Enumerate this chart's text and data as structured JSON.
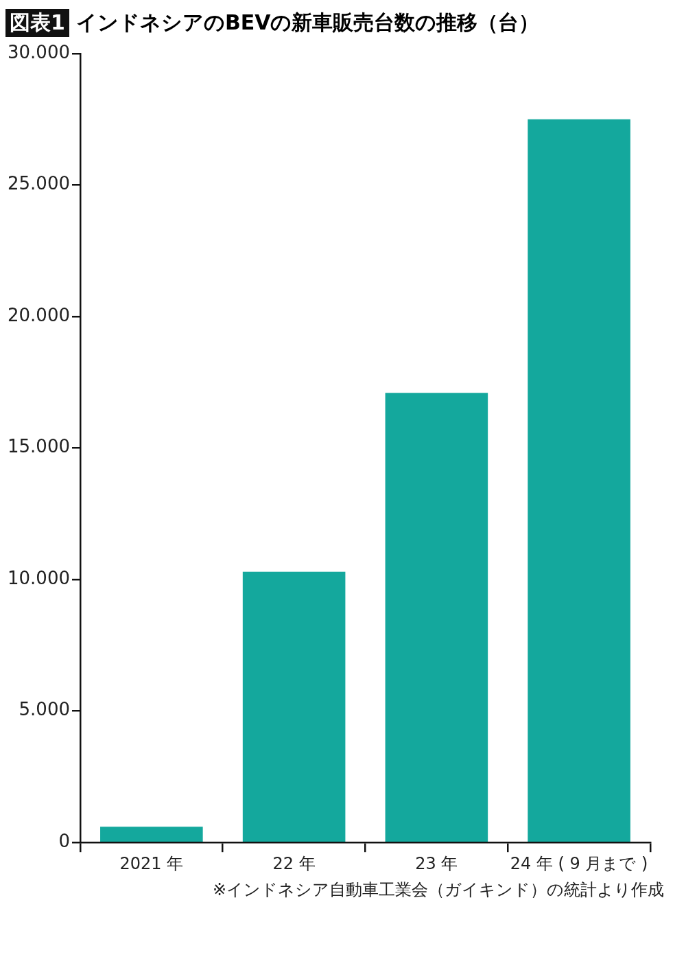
{
  "chart_data": {
    "type": "bar",
    "title": "図表1 インドネシアのBEVの新車販売台数の推移（台）",
    "categories": [
      "2021 年",
      "22 年",
      "23 年",
      "24 年 ( 9 月まで )"
    ],
    "values": [
      600,
      10300,
      17100,
      27500
    ],
    "color": "#14a89d",
    "ylim": [
      0,
      30000
    ],
    "yticks": [
      {
        "value": 0,
        "label": "0"
      },
      {
        "value": 5000,
        "label": "5.000"
      },
      {
        "value": 10000,
        "label": "10.000"
      },
      {
        "value": 15000,
        "label": "15.000"
      },
      {
        "value": 20000,
        "label": "20.000"
      },
      {
        "value": 25000,
        "label": "25.000"
      },
      {
        "value": 30000,
        "label": "30.000"
      }
    ],
    "grid": false,
    "legend": false,
    "annotations": [
      "※インドネシア自動車工業会（ガイキンド）の統計より作成"
    ]
  }
}
